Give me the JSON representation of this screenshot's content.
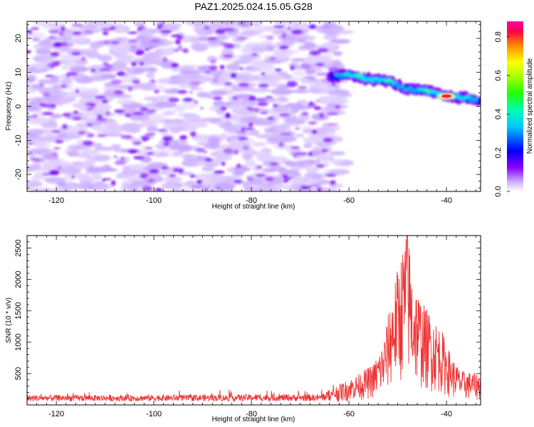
{
  "figure_title": "PAZ1.2025.024.15.05.G28",
  "chart_data": [
    {
      "type": "heatmap",
      "xlabel": "Height of straight line (km)",
      "ylabel": "Frequency (Hz)",
      "xlim": [
        -126,
        -33
      ],
      "ylim": [
        -25,
        25
      ],
      "xticks": [
        -120,
        -100,
        -80,
        -60,
        -40
      ],
      "yticks": [
        20,
        10,
        0,
        -10,
        -20
      ],
      "colorbar": {
        "label": "Normalized spectral amplitude",
        "range": [
          0,
          0.88
        ],
        "ticks": [
          0.0,
          0.2,
          0.4,
          0.6,
          0.8
        ],
        "tick_labels": [
          "0.0",
          "0.2",
          "0.4",
          "0.6",
          "0.8"
        ],
        "colors": [
          "#ffffff",
          "#8a00ff",
          "#0000ff",
          "#00e5ff",
          "#00ff66",
          "#88ff00",
          "#ffff00",
          "#ff8800",
          "#ff0055",
          "#ff00aa"
        ]
      },
      "noise_region": {
        "x_range": [
          -126,
          -61
        ],
        "f_range": [
          -25,
          25
        ],
        "amplitude": 0.05
      },
      "signal_ridge": [
        {
          "x": -64,
          "f": 8.5,
          "amp": 0.25
        },
        {
          "x": -60,
          "f": 9.5,
          "amp": 0.42
        },
        {
          "x": -56,
          "f": 8.0,
          "amp": 0.38
        },
        {
          "x": -52,
          "f": 7.5,
          "amp": 0.4
        },
        {
          "x": -48,
          "f": 5.0,
          "amp": 0.35
        },
        {
          "x": -44,
          "f": 4.5,
          "amp": 0.4
        },
        {
          "x": -40,
          "f": 3.0,
          "amp": 0.88
        },
        {
          "x": -36,
          "f": 2.5,
          "amp": 0.4
        },
        {
          "x": -33,
          "f": 1.5,
          "amp": 0.3
        }
      ]
    },
    {
      "type": "line",
      "xlabel": "Height of straight line (km)",
      "ylabel": "SNR (10 * v/v)",
      "xlim": [
        -126,
        -33
      ],
      "ylim": [
        0,
        2700
      ],
      "xticks": [
        -120,
        -100,
        -80,
        -60,
        -40
      ],
      "yticks": [
        500,
        1000,
        1500,
        2000,
        2500
      ],
      "series": [
        {
          "color": "#ee3333",
          "envelope": [
            {
              "x": -126,
              "y": 140
            },
            {
              "x": -100,
              "y": 140
            },
            {
              "x": -80,
              "y": 150
            },
            {
              "x": -66,
              "y": 150
            },
            {
              "x": -62,
              "y": 300
            },
            {
              "x": -58,
              "y": 450
            },
            {
              "x": -55,
              "y": 600
            },
            {
              "x": -53,
              "y": 900
            },
            {
              "x": -51,
              "y": 1700
            },
            {
              "x": -49,
              "y": 2300
            },
            {
              "x": -48,
              "y": 2650
            },
            {
              "x": -47,
              "y": 1900
            },
            {
              "x": -45,
              "y": 1500
            },
            {
              "x": -43,
              "y": 1300
            },
            {
              "x": -41,
              "y": 1100
            },
            {
              "x": -39,
              "y": 700
            },
            {
              "x": -37,
              "y": 500
            },
            {
              "x": -33,
              "y": 450
            }
          ]
        }
      ]
    }
  ]
}
